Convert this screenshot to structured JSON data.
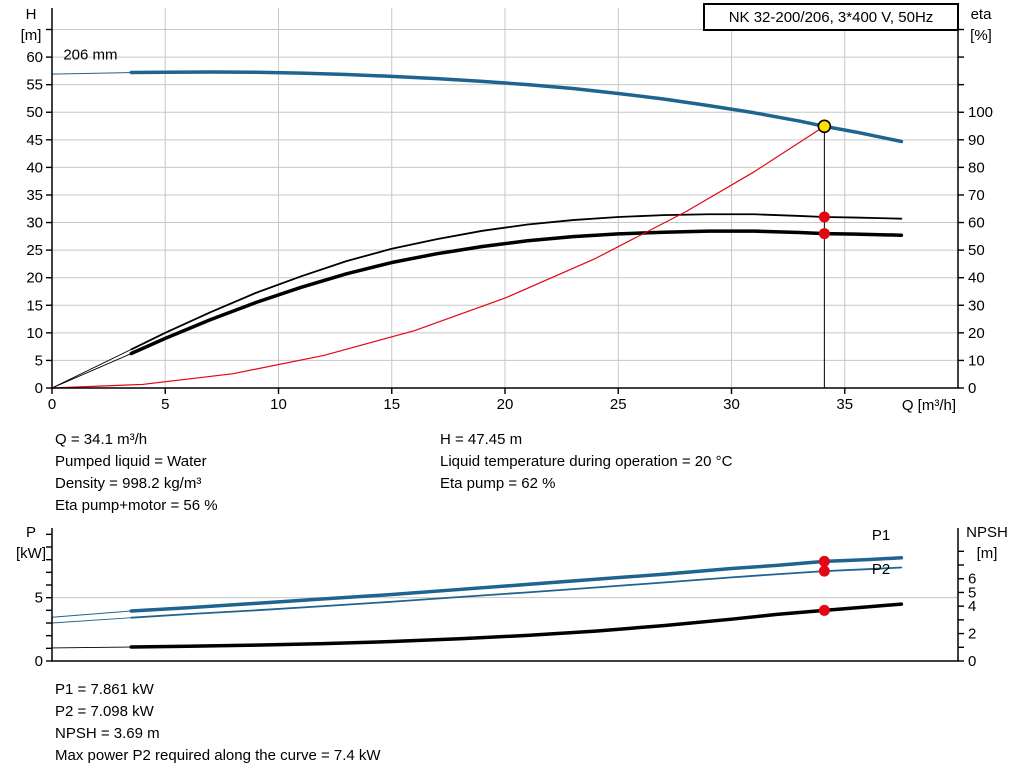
{
  "colors": {
    "curve_blue": "#1f6391",
    "marker_red": "#e30613",
    "duty_yellow": "#ffe000",
    "grid": "#c8c8c8",
    "axis": "#000000"
  },
  "info_top": {
    "left": [
      "Q = 34.1 m³/h",
      "Pumped liquid = Water",
      "Density = 998.2 kg/m³",
      "Eta pump+motor = 56 %"
    ],
    "right": [
      "H = 47.45 m",
      "Liquid temperature during operation = 20 °C",
      "Eta pump = 62 %"
    ]
  },
  "info_bottom": [
    "P1 = 7.861 kW",
    "P2 = 7.098 kW",
    "NPSH = 3.69 m",
    "Max power P2 required along the curve = 7.4 kW"
  ],
  "chart_data": [
    {
      "type": "line",
      "title": "NK 32-200/206, 3*400 V, 50Hz",
      "xlabel": "Q [m³/h]",
      "ylabel_left": {
        "name": "H",
        "unit": "[m]"
      },
      "ylabel_right": {
        "name": "eta",
        "unit": "[%]"
      },
      "xlim": [
        0,
        40
      ],
      "ylim_left": [
        0,
        68.9
      ],
      "ylim_right": [
        0,
        137.8
      ],
      "x_ticks": [
        0,
        5,
        10,
        15,
        20,
        25,
        30,
        35
      ],
      "y_ticks_left": [
        [
          0,
          "0"
        ],
        [
          5,
          "5"
        ],
        [
          10,
          "10"
        ],
        [
          15,
          "15"
        ],
        [
          20,
          "20"
        ],
        [
          25,
          "25"
        ],
        [
          30,
          "30"
        ],
        [
          35,
          "35"
        ],
        [
          40,
          "40"
        ],
        [
          45,
          "45"
        ],
        [
          50,
          "50"
        ],
        [
          55,
          "55"
        ],
        [
          60,
          "60"
        ],
        [
          65,
          null
        ]
      ],
      "y_ticks_right": [
        [
          0,
          "0"
        ],
        [
          10,
          "10"
        ],
        [
          20,
          "20"
        ],
        [
          30,
          "30"
        ],
        [
          40,
          "40"
        ],
        [
          50,
          "50"
        ],
        [
          60,
          "60"
        ],
        [
          70,
          "70"
        ],
        [
          80,
          "80"
        ],
        [
          90,
          "90"
        ],
        [
          100,
          "100"
        ],
        [
          110,
          null
        ],
        [
          120,
          null
        ],
        [
          130,
          null
        ]
      ],
      "grid_x": [
        5,
        10,
        15,
        20,
        25,
        30,
        35
      ],
      "grid_y": [
        5,
        10,
        15,
        20,
        25,
        30,
        35,
        40,
        45,
        50,
        55,
        60,
        65
      ],
      "series": [
        {
          "name": "head-lead",
          "axis": "left",
          "color": "#1f6391",
          "width": 1,
          "x": [
            0,
            3.5
          ],
          "y": [
            56.9,
            57.2
          ]
        },
        {
          "name": "head-206mm",
          "axis": "left",
          "color": "#1f6391",
          "width": 3.5,
          "x": [
            3.5,
            5,
            7,
            9,
            11,
            13,
            15,
            17,
            19,
            21,
            23,
            25,
            27,
            29,
            31,
            33,
            34.1,
            35.5,
            37.5
          ],
          "y": [
            57.2,
            57.25,
            57.3,
            57.25,
            57.1,
            56.85,
            56.5,
            56.1,
            55.6,
            55,
            54.3,
            53.4,
            52.4,
            51.2,
            49.9,
            48.4,
            47.45,
            46.4,
            44.7
          ]
        },
        {
          "name": "eta-pump-lead",
          "axis": "right",
          "color": "#000000",
          "width": 0.9,
          "x": [
            0,
            3.5
          ],
          "y": [
            0,
            14
          ]
        },
        {
          "name": "eta-pump",
          "axis": "right",
          "color": "#000000",
          "width": 1.8,
          "x": [
            3.5,
            5,
            7,
            9,
            11,
            13,
            15,
            17,
            19,
            21,
            23,
            25,
            27,
            29,
            31,
            33,
            34.1,
            35.5,
            37.5
          ],
          "y": [
            14,
            20,
            27.5,
            34.5,
            40.5,
            46,
            50.5,
            54,
            57,
            59.3,
            60.9,
            62,
            62.7,
            63,
            63,
            62.4,
            62,
            61.8,
            61.4
          ]
        },
        {
          "name": "eta-pump-motor-lead",
          "axis": "right",
          "color": "#000000",
          "width": 0.9,
          "x": [
            0,
            3.5
          ],
          "y": [
            0,
            12.5
          ]
        },
        {
          "name": "eta-pump-motor",
          "axis": "right",
          "color": "#000000",
          "width": 3.5,
          "x": [
            3.5,
            5,
            7,
            9,
            11,
            13,
            15,
            17,
            19,
            21,
            23,
            25,
            27,
            29,
            31,
            33,
            34.1,
            35.5,
            37.5
          ],
          "y": [
            12.5,
            18,
            24.8,
            31,
            36.5,
            41.4,
            45.5,
            48.7,
            51.3,
            53.4,
            54.9,
            55.9,
            56.5,
            56.9,
            56.9,
            56.4,
            56,
            55.8,
            55.4
          ]
        },
        {
          "name": "system-curve",
          "axis": "left",
          "color": "#e30613",
          "width": 1.2,
          "x": [
            0,
            4,
            8,
            12,
            16,
            20,
            24,
            28,
            31,
            34.1
          ],
          "y": [
            0,
            0.65,
            2.6,
            5.9,
            10.4,
            16.3,
            23.5,
            32,
            39.2,
            47.45
          ]
        }
      ],
      "vline": {
        "x": 34.1,
        "y": 47.45,
        "axis": "left"
      },
      "markers": [
        {
          "name": "duty-point",
          "x": 34.1,
          "y": 47.45,
          "axis": "left",
          "r": 6,
          "fill": "#ffe000",
          "stroke": "#000000"
        },
        {
          "name": "eta-pump-dot",
          "x": 34.1,
          "y": 62,
          "axis": "right",
          "r": 5.5,
          "fill": "#e30613"
        },
        {
          "name": "eta-pump-motor-dot",
          "x": 34.1,
          "y": 56,
          "axis": "right",
          "r": 5.5,
          "fill": "#e30613"
        }
      ],
      "annotations": [
        {
          "name": "impeller-size",
          "text": "206 mm",
          "x": 0.5,
          "y": 59.6,
          "axis": "left",
          "anchor": "start",
          "color": "#000000"
        }
      ],
      "duty_point": {
        "Q": 34.1,
        "H": 47.45,
        "eta_pump": 62,
        "eta_pump_motor": 56
      }
    },
    {
      "type": "line",
      "title": "",
      "xlabel": "",
      "ylabel_left": {
        "name": "P",
        "unit": "[kW]"
      },
      "ylabel_right": {
        "name": "NPSH",
        "unit": "[m]"
      },
      "xlim": [
        0,
        40
      ],
      "ylim_left": [
        0,
        10.5
      ],
      "ylim_right": [
        0,
        9.7
      ],
      "x_ticks": [],
      "y_ticks_left": [
        [
          0,
          "0"
        ],
        [
          1,
          null
        ],
        [
          2,
          null
        ],
        [
          3,
          null
        ],
        [
          4,
          null
        ],
        [
          5,
          "5"
        ],
        [
          6,
          null
        ],
        [
          7,
          null
        ],
        [
          8,
          null
        ],
        [
          9,
          null
        ],
        [
          10,
          null
        ]
      ],
      "y_ticks_right": [
        [
          0,
          "0"
        ],
        [
          1,
          null
        ],
        [
          2,
          "2"
        ],
        [
          3,
          null
        ],
        [
          4,
          "4"
        ],
        [
          5,
          "5"
        ],
        [
          6,
          "6"
        ],
        [
          7,
          null
        ],
        [
          8,
          null
        ]
      ],
      "grid_x": [],
      "grid_y": [
        5
      ],
      "series": [
        {
          "name": "p1-lead",
          "axis": "left",
          "color": "#1f6391",
          "width": 1,
          "x": [
            0,
            3.5
          ],
          "y": [
            3.45,
            3.95
          ]
        },
        {
          "name": "p1",
          "axis": "left",
          "color": "#1f6391",
          "width": 3.5,
          "x": [
            3.5,
            6,
            9,
            12,
            15,
            18,
            21,
            24,
            27,
            30,
            32,
            34.1,
            36,
            37.5
          ],
          "y": [
            3.95,
            4.2,
            4.55,
            4.9,
            5.25,
            5.65,
            6.05,
            6.45,
            6.85,
            7.3,
            7.55,
            7.861,
            8,
            8.15
          ]
        },
        {
          "name": "p2-lead",
          "axis": "left",
          "color": "#1f6391",
          "width": 0.9,
          "x": [
            0,
            3.5
          ],
          "y": [
            3,
            3.42
          ]
        },
        {
          "name": "p2",
          "axis": "left",
          "color": "#1f6391",
          "width": 1.8,
          "x": [
            3.5,
            6,
            9,
            12,
            15,
            18,
            21,
            24,
            27,
            30,
            32,
            34.1,
            36,
            37.5
          ],
          "y": [
            3.42,
            3.7,
            4,
            4.33,
            4.68,
            5.05,
            5.42,
            5.8,
            6.2,
            6.6,
            6.85,
            7.098,
            7.25,
            7.38
          ]
        },
        {
          "name": "npsh-lead",
          "axis": "right",
          "color": "#000000",
          "width": 0.9,
          "x": [
            0,
            3.5
          ],
          "y": [
            0.95,
            1.02
          ]
        },
        {
          "name": "npsh",
          "axis": "right",
          "color": "#000000",
          "width": 3.5,
          "x": [
            3.5,
            6,
            9,
            12,
            15,
            18,
            21,
            24,
            27,
            30,
            32,
            34.1,
            36,
            37.5
          ],
          "y": [
            1.02,
            1.08,
            1.16,
            1.27,
            1.42,
            1.62,
            1.87,
            2.18,
            2.58,
            3.05,
            3.4,
            3.69,
            3.95,
            4.15
          ]
        }
      ],
      "markers": [
        {
          "name": "p1-dot",
          "x": 34.1,
          "y": 7.861,
          "axis": "left",
          "r": 5.5,
          "fill": "#e30613"
        },
        {
          "name": "p2-dot",
          "x": 34.1,
          "y": 7.098,
          "axis": "left",
          "r": 5.5,
          "fill": "#e30613"
        },
        {
          "name": "npsh-dot",
          "x": 34.1,
          "y": 3.69,
          "axis": "right",
          "r": 5.5,
          "fill": "#e30613"
        }
      ],
      "annotations": [
        {
          "name": "p1-label",
          "text": "P1",
          "x": 36.2,
          "y": 9.55,
          "axis": "left",
          "anchor": "start",
          "color": "#1f6391"
        },
        {
          "name": "p2-label",
          "text": "P2",
          "x": 36.2,
          "y": 6.85,
          "axis": "left",
          "anchor": "start",
          "color": "#1f6391"
        }
      ],
      "duty_point": {
        "Q": 34.1,
        "P1_kW": 7.861,
        "P2_kW": 7.098,
        "NPSH_m": 3.69
      }
    }
  ]
}
